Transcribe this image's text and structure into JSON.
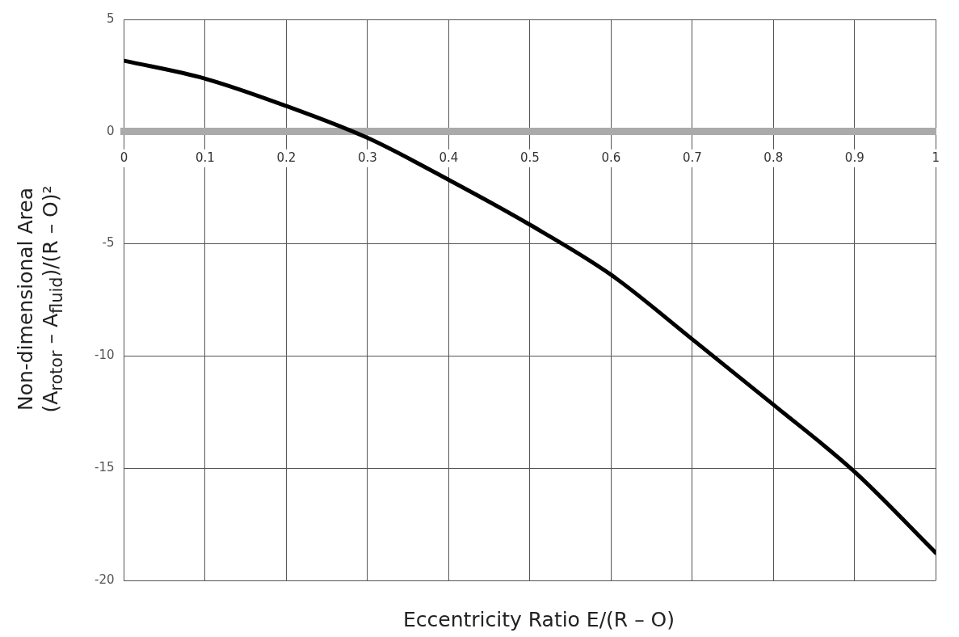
{
  "chart_data": {
    "type": "line",
    "xlabel": "Eccentricity Ratio E/(R – O)",
    "ylabel": "Non-dimensional Area\n(A$_{rotor}$ – A$_{fluid}$)/(R – O)²",
    "x": [
      0,
      0.1,
      0.2,
      0.3,
      0.4,
      0.5,
      0.6,
      0.7,
      0.8,
      0.9,
      1
    ],
    "series": [
      {
        "color": "#000000",
        "values": [
          3.16,
          2.36,
          1.14,
          -0.28,
          -2.15,
          -4.15,
          -6.38,
          -9.25,
          -12.17,
          -15.16,
          -18.77
        ]
      }
    ],
    "xlim": [
      0,
      1
    ],
    "xticks": [
      0,
      0.1,
      0.2,
      0.3,
      0.4,
      0.5,
      0.6,
      0.7,
      0.8,
      0.9,
      1
    ],
    "ylim": [
      -20,
      5
    ],
    "yticks": [
      -20,
      -15,
      -10,
      -5,
      0,
      5
    ],
    "grid": true,
    "line_style": "solid"
  }
}
